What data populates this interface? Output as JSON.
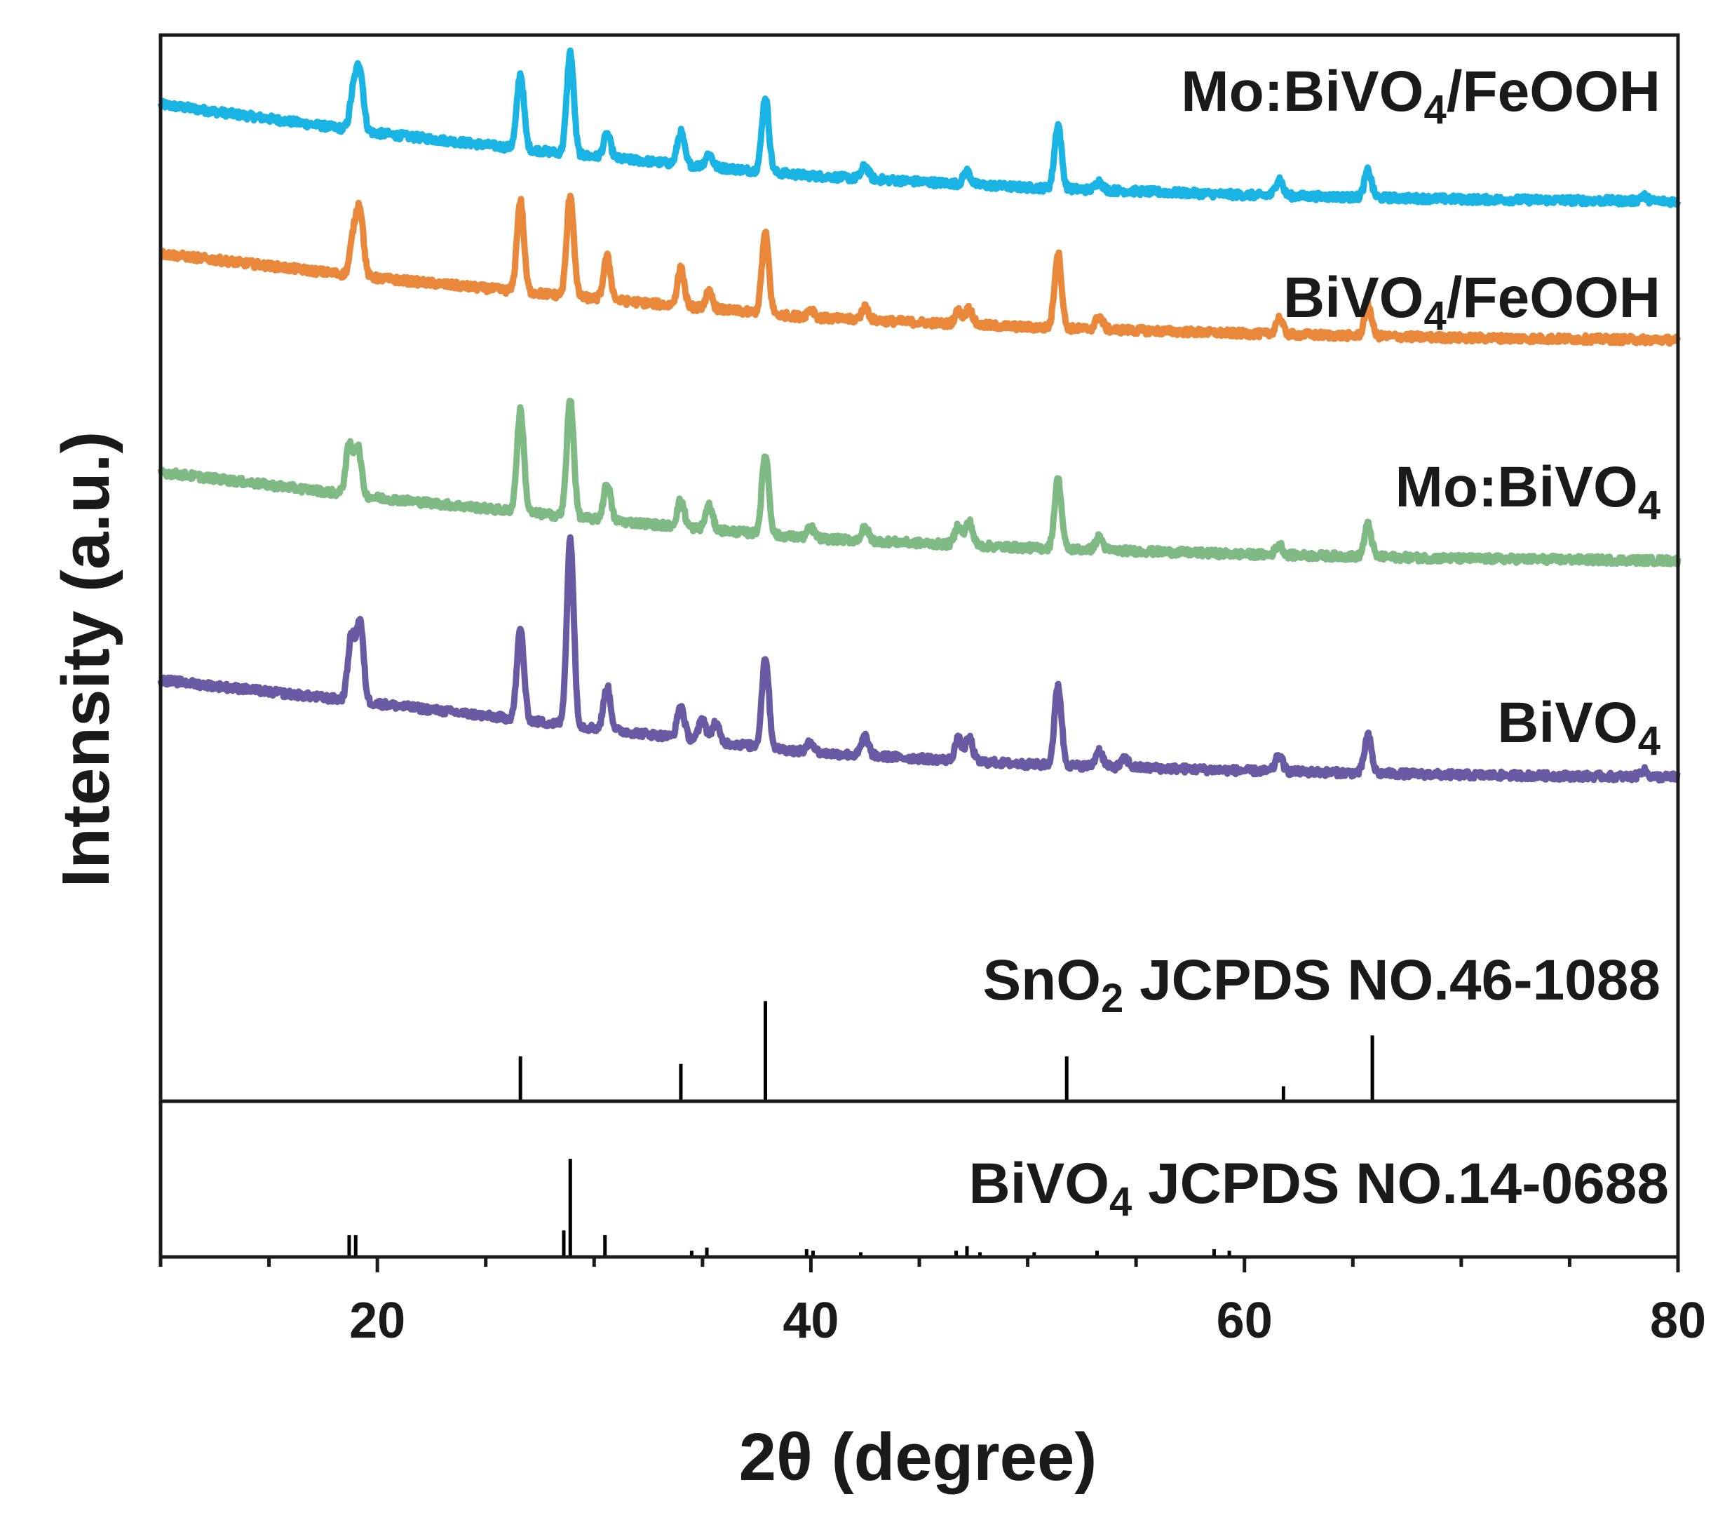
{
  "chart_data": {
    "type": "line",
    "xlabel": "2θ  (degree)",
    "ylabel": "Intensity (a.u.)",
    "xlim": [
      10,
      80
    ],
    "xticks": [
      20,
      40,
      60,
      80
    ],
    "yticks": [],
    "grid": false,
    "series": [
      {
        "name": "Mo:BiVO4/FeOOH",
        "label": {
          "main": "Mo:BiVO",
          "sub": "4",
          "tail": "/FeOOH"
        },
        "color": "#19b4e3",
        "baseline": [
          [
            10,
            0.935
          ],
          [
            20,
            0.908
          ],
          [
            30,
            0.886
          ],
          [
            40,
            0.868
          ],
          [
            50,
            0.857
          ],
          [
            60,
            0.85
          ],
          [
            70,
            0.846
          ],
          [
            80,
            0.844
          ]
        ],
        "peaks": [
          [
            18.9,
            0.035
          ],
          [
            19.2,
            0.055
          ],
          [
            26.6,
            0.07
          ],
          [
            28.9,
            0.095
          ],
          [
            30.6,
            0.022
          ],
          [
            34.0,
            0.03
          ],
          [
            35.3,
            0.012
          ],
          [
            37.9,
            0.07
          ],
          [
            42.5,
            0.012
          ],
          [
            47.2,
            0.012
          ],
          [
            51.4,
            0.06
          ],
          [
            53.3,
            0.008
          ],
          [
            61.6,
            0.016
          ],
          [
            65.7,
            0.025
          ],
          [
            78.4,
            0.005
          ]
        ]
      },
      {
        "name": "BiVO4/FeOOH",
        "label": {
          "main": "BiVO",
          "sub": "4",
          "tail": "/FeOOH"
        },
        "color": "#e9883a",
        "baseline": [
          [
            10,
            0.795
          ],
          [
            20,
            0.772
          ],
          [
            30,
            0.753
          ],
          [
            40,
            0.735
          ],
          [
            50,
            0.726
          ],
          [
            60,
            0.72
          ],
          [
            70,
            0.716
          ],
          [
            80,
            0.714
          ]
        ],
        "peaks": [
          [
            18.9,
            0.035
          ],
          [
            19.2,
            0.06
          ],
          [
            26.6,
            0.085
          ],
          [
            28.9,
            0.095
          ],
          [
            30.6,
            0.04
          ],
          [
            34.0,
            0.035
          ],
          [
            35.3,
            0.015
          ],
          [
            37.9,
            0.075
          ],
          [
            40.0,
            0.008
          ],
          [
            42.5,
            0.012
          ],
          [
            46.8,
            0.012
          ],
          [
            47.3,
            0.015
          ],
          [
            51.4,
            0.07
          ],
          [
            53.3,
            0.012
          ],
          [
            61.6,
            0.015
          ],
          [
            65.7,
            0.03
          ]
        ]
      },
      {
        "name": "Mo:BiVO4",
        "label": {
          "main": "Mo:BiVO",
          "sub": "4",
          "tail": ""
        },
        "color": "#7fba85",
        "baseline": [
          [
            10,
            0.59
          ],
          [
            20,
            0.566
          ],
          [
            30,
            0.546
          ],
          [
            40,
            0.528
          ],
          [
            50,
            0.519
          ],
          [
            60,
            0.513
          ],
          [
            70,
            0.509
          ],
          [
            80,
            0.507
          ]
        ],
        "peaks": [
          [
            18.7,
            0.045
          ],
          [
            19.1,
            0.045
          ],
          [
            26.6,
            0.095
          ],
          [
            28.9,
            0.11
          ],
          [
            30.6,
            0.035
          ],
          [
            34.0,
            0.025
          ],
          [
            35.3,
            0.022
          ],
          [
            37.9,
            0.075
          ],
          [
            40.0,
            0.01
          ],
          [
            42.5,
            0.012
          ],
          [
            46.8,
            0.018
          ],
          [
            47.3,
            0.022
          ],
          [
            51.4,
            0.065
          ],
          [
            53.3,
            0.012
          ],
          [
            61.6,
            0.01
          ],
          [
            65.7,
            0.03
          ]
        ]
      },
      {
        "name": "BiVO4",
        "label": {
          "main": "BiVO",
          "sub": "4",
          "tail": ""
        },
        "color": "#6a59a3",
        "baseline": [
          [
            10,
            0.395
          ],
          [
            20,
            0.373
          ],
          [
            30,
            0.35
          ],
          [
            40,
            0.327
          ],
          [
            50,
            0.316
          ],
          [
            60,
            0.31
          ],
          [
            70,
            0.306
          ],
          [
            80,
            0.304
          ]
        ],
        "peaks": [
          [
            18.8,
            0.06
          ],
          [
            19.2,
            0.075
          ],
          [
            26.6,
            0.085
          ],
          [
            28.9,
            0.175
          ],
          [
            30.6,
            0.04
          ],
          [
            34.0,
            0.03
          ],
          [
            35.0,
            0.02
          ],
          [
            35.6,
            0.018
          ],
          [
            37.9,
            0.085
          ],
          [
            40.0,
            0.01
          ],
          [
            42.5,
            0.018
          ],
          [
            46.8,
            0.02
          ],
          [
            47.3,
            0.022
          ],
          [
            51.4,
            0.075
          ],
          [
            53.3,
            0.015
          ],
          [
            54.5,
            0.008
          ],
          [
            61.6,
            0.015
          ],
          [
            65.7,
            0.035
          ],
          [
            78.4,
            0.006
          ]
        ]
      }
    ],
    "references": [
      {
        "name": "SnO2 JCPDS NO.46-1088",
        "label": {
          "main": "SnO",
          "sub": "2",
          "tail": " JCPDS NO.46-1088"
        },
        "color": "#000000",
        "sticks": [
          [
            26.6,
            0.3
          ],
          [
            34.0,
            0.25
          ],
          [
            37.9,
            0.67
          ],
          [
            51.8,
            0.3
          ],
          [
            61.8,
            0.1
          ],
          [
            65.9,
            0.44
          ]
        ]
      },
      {
        "name": "BiVO4 JCPDS NO.14-0688",
        "label": {
          "main": "BiVO",
          "sub": "4",
          "tail": " JCPDS NO.14-0688"
        },
        "color": "#000000",
        "sticks": [
          [
            18.7,
            0.14
          ],
          [
            19.0,
            0.14
          ],
          [
            28.6,
            0.17
          ],
          [
            28.9,
            0.63
          ],
          [
            30.5,
            0.14
          ],
          [
            34.5,
            0.04
          ],
          [
            35.2,
            0.06
          ],
          [
            39.8,
            0.05
          ],
          [
            40.1,
            0.04
          ],
          [
            42.3,
            0.03
          ],
          [
            46.7,
            0.04
          ],
          [
            47.2,
            0.07
          ],
          [
            47.8,
            0.03
          ],
          [
            50.3,
            0.03
          ],
          [
            53.2,
            0.04
          ],
          [
            58.6,
            0.05
          ],
          [
            59.3,
            0.04
          ]
        ]
      }
    ]
  }
}
